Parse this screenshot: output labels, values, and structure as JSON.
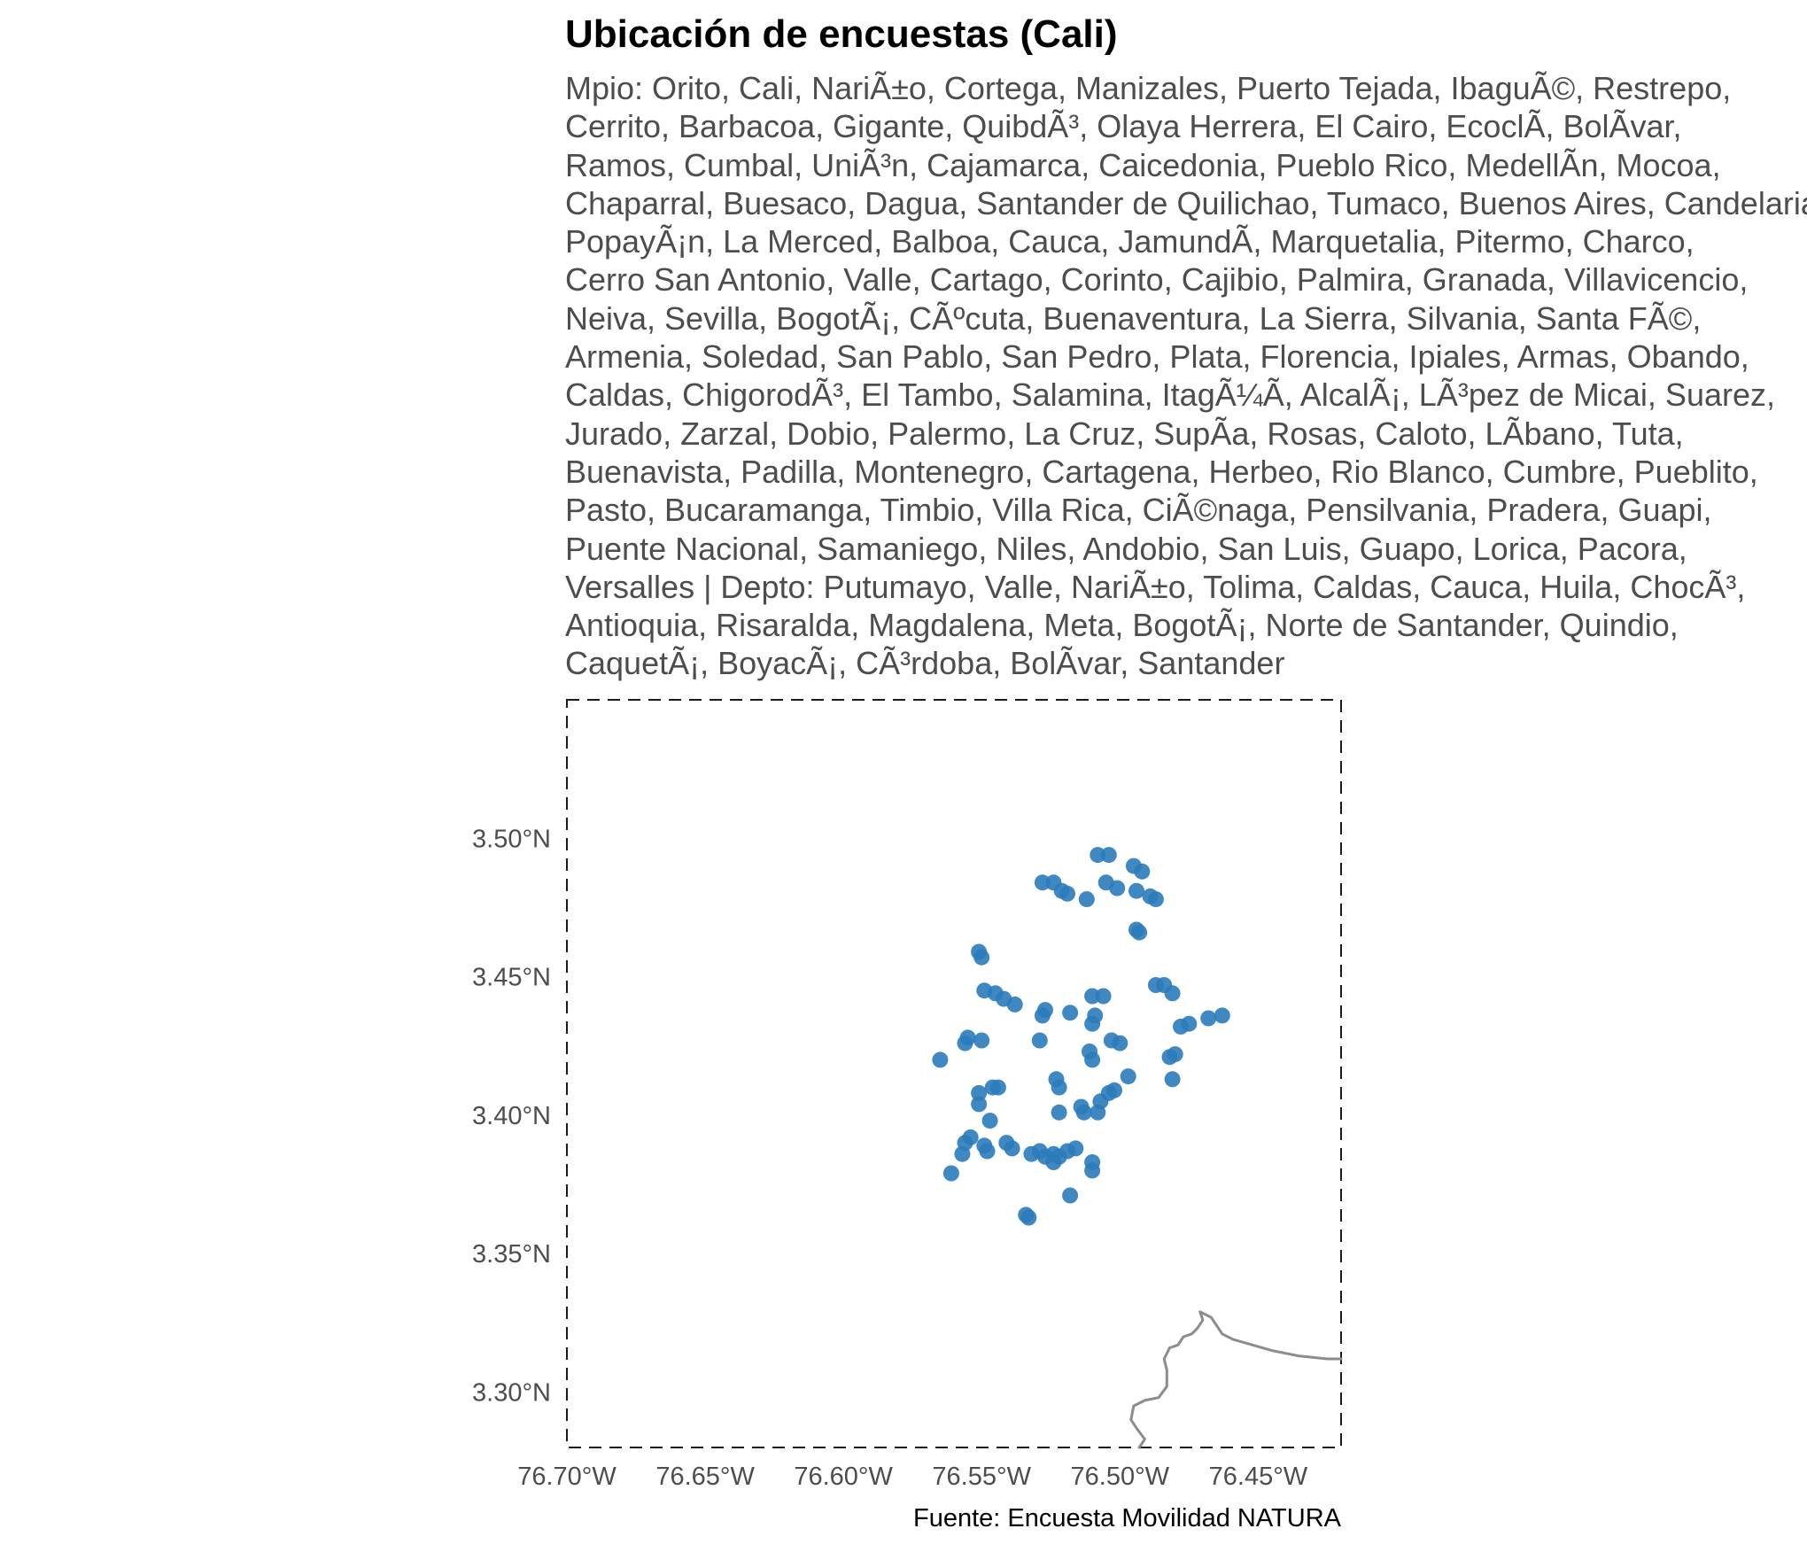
{
  "title": "Ubicación de encuestas (Cali)",
  "subtitle_lines": [
    "Mpio: Orito, Cali, NariÃ±o, Cortega, Manizales, Puerto Tejada, IbaguÃ©, Restrepo,",
    "Cerrito, Barbacoa, Gigante, QuibdÃ³, Olaya Herrera, El Cairo, EcoclÃ, BolÃvar,",
    "Ramos, Cumbal, UniÃ³n, Cajamarca, Caicedonia, Pueblo Rico, MedellÃn, Mocoa,",
    "Chaparral, Buesaco, Dagua, Santander de Quilichao, Tumaco, Buenos Aires, Candelaria,",
    "PopayÃ¡n, La Merced, Balboa, Cauca, JamundÃ, Marquetalia, Pitermo, Charco,",
    "Cerro San Antonio, Valle, Cartago, Corinto, Cajibio, Palmira, Granada, Villavicencio,",
    "Neiva, Sevilla, BogotÃ¡, CÃºcuta, Buenaventura, La Sierra, Silvania, Santa FÃ©,",
    "Armenia, Soledad, San Pablo, San Pedro, Plata, Florencia, Ipiales, Armas, Obando,",
    "Caldas, ChigorodÃ³, El Tambo, Salamina, ItagÃ¼Ã, AlcalÃ¡, LÃ³pez de Micai, Suarez,",
    "Jurado, Zarzal, Dobio, Palermo, La Cruz, SupÃa, Rosas, Caloto, LÃbano, Tuta,",
    "Buenavista, Padilla, Montenegro, Cartagena, Herbeo, Rio Blanco, Cumbre, Pueblito,",
    "Pasto, Bucaramanga, Timbio, Villa Rica, CiÃ©naga, Pensilvania, Pradera, Guapi,",
    "Puente Nacional, Samaniego, Niles, Andobio, San Luis, Guapo, Lorica, Pacora,",
    "Versalles | Depto: Putumayo, Valle, NariÃ±o, Tolima, Caldas, Cauca, Huila, ChocÃ³,",
    "Antioquia, Risaralda, Magdalena, Meta, BogotÃ¡, Norte de Santander, Quindio,",
    "CaquetÃ¡, BoyacÃ¡, CÃ³rdoba, BolÃvar, Santander"
  ],
  "caption": "Fuente: Encuesta Movilidad NATURA",
  "chart_data": {
    "type": "scatter",
    "xlim": [
      -76.7,
      -76.42
    ],
    "ylim": [
      3.28,
      3.55
    ],
    "x_ticks": [
      -76.7,
      -76.65,
      -76.6,
      -76.55,
      -76.5,
      -76.45
    ],
    "x_tick_labels": [
      "76.70°W",
      "76.65°W",
      "76.60°W",
      "76.55°W",
      "76.50°W",
      "76.45°W"
    ],
    "y_ticks": [
      3.3,
      3.35,
      3.4,
      3.45,
      3.5
    ],
    "y_tick_labels": [
      "3.30°N",
      "3.35°N",
      "3.40°N",
      "3.45°N",
      "3.50°N"
    ],
    "grid": false,
    "point_color": "#2b7bba",
    "boundary_color": "#8c8c8c",
    "frame_style": "dashed",
    "boundary": [
      [
        -76.493,
        3.28
      ],
      [
        -76.491,
        3.283
      ],
      [
        -76.494,
        3.287
      ],
      [
        -76.496,
        3.29
      ],
      [
        -76.495,
        3.295
      ],
      [
        -76.491,
        3.297
      ],
      [
        -76.486,
        3.298
      ],
      [
        -76.483,
        3.302
      ],
      [
        -76.483,
        3.308
      ],
      [
        -76.484,
        3.312
      ],
      [
        -76.482,
        3.316
      ],
      [
        -76.479,
        3.317
      ],
      [
        -76.477,
        3.32
      ],
      [
        -76.474,
        3.321
      ],
      [
        -76.472,
        3.323
      ],
      [
        -76.47,
        3.326
      ],
      [
        -76.471,
        3.329
      ],
      [
        -76.467,
        3.327
      ],
      [
        -76.463,
        3.321
      ],
      [
        -76.459,
        3.319
      ],
      [
        -76.452,
        3.317
      ],
      [
        -76.445,
        3.315
      ],
      [
        -76.435,
        3.313
      ],
      [
        -76.425,
        3.312
      ],
      [
        -76.42,
        3.312
      ]
    ],
    "points": [
      [
        -76.508,
        3.494
      ],
      [
        -76.504,
        3.494
      ],
      [
        -76.495,
        3.49
      ],
      [
        -76.492,
        3.488
      ],
      [
        -76.505,
        3.484
      ],
      [
        -76.501,
        3.482
      ],
      [
        -76.494,
        3.481
      ],
      [
        -76.489,
        3.479
      ],
      [
        -76.487,
        3.478
      ],
      [
        -76.528,
        3.484
      ],
      [
        -76.524,
        3.484
      ],
      [
        -76.521,
        3.481
      ],
      [
        -76.519,
        3.48
      ],
      [
        -76.512,
        3.478
      ],
      [
        -76.494,
        3.467
      ],
      [
        -76.493,
        3.466
      ],
      [
        -76.551,
        3.459
      ],
      [
        -76.55,
        3.457
      ],
      [
        -76.549,
        3.445
      ],
      [
        -76.545,
        3.444
      ],
      [
        -76.542,
        3.442
      ],
      [
        -76.538,
        3.44
      ],
      [
        -76.527,
        3.438
      ],
      [
        -76.528,
        3.436
      ],
      [
        -76.518,
        3.437
      ],
      [
        -76.51,
        3.443
      ],
      [
        -76.506,
        3.443
      ],
      [
        -76.487,
        3.447
      ],
      [
        -76.484,
        3.447
      ],
      [
        -76.481,
        3.444
      ],
      [
        -76.478,
        3.432
      ],
      [
        -76.475,
        3.433
      ],
      [
        -76.468,
        3.435
      ],
      [
        -76.463,
        3.436
      ],
      [
        -76.555,
        3.428
      ],
      [
        -76.55,
        3.427
      ],
      [
        -76.556,
        3.426
      ],
      [
        -76.565,
        3.42
      ],
      [
        -76.529,
        3.427
      ],
      [
        -76.51,
        3.433
      ],
      [
        -76.509,
        3.436
      ],
      [
        -76.511,
        3.423
      ],
      [
        -76.51,
        3.42
      ],
      [
        -76.503,
        3.427
      ],
      [
        -76.5,
        3.426
      ],
      [
        -76.482,
        3.421
      ],
      [
        -76.48,
        3.422
      ],
      [
        -76.481,
        3.413
      ],
      [
        -76.497,
        3.414
      ],
      [
        -76.551,
        3.408
      ],
      [
        -76.551,
        3.404
      ],
      [
        -76.546,
        3.41
      ],
      [
        -76.544,
        3.41
      ],
      [
        -76.547,
        3.398
      ],
      [
        -76.523,
        3.413
      ],
      [
        -76.522,
        3.41
      ],
      [
        -76.522,
        3.401
      ],
      [
        -76.514,
        3.403
      ],
      [
        -76.513,
        3.401
      ],
      [
        -76.508,
        3.401
      ],
      [
        -76.507,
        3.405
      ],
      [
        -76.504,
        3.408
      ],
      [
        -76.502,
        3.409
      ],
      [
        -76.554,
        3.392
      ],
      [
        -76.556,
        3.39
      ],
      [
        -76.557,
        3.386
      ],
      [
        -76.549,
        3.389
      ],
      [
        -76.548,
        3.387
      ],
      [
        -76.541,
        3.39
      ],
      [
        -76.539,
        3.388
      ],
      [
        -76.532,
        3.386
      ],
      [
        -76.529,
        3.387
      ],
      [
        -76.527,
        3.385
      ],
      [
        -76.524,
        3.386
      ],
      [
        -76.522,
        3.385
      ],
      [
        -76.519,
        3.387
      ],
      [
        -76.516,
        3.388
      ],
      [
        -76.524,
        3.383
      ],
      [
        -76.51,
        3.383
      ],
      [
        -76.51,
        3.38
      ],
      [
        -76.561,
        3.379
      ],
      [
        -76.518,
        3.371
      ],
      [
        -76.534,
        3.364
      ],
      [
        -76.533,
        3.363
      ]
    ]
  }
}
